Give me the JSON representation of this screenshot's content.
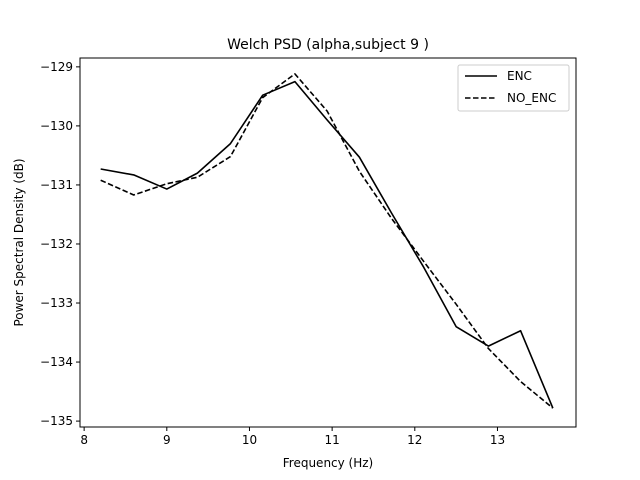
{
  "chart_data": {
    "type": "line",
    "title": "Welch PSD (alpha,subject 9 )",
    "xlabel": "Frequency (Hz)",
    "ylabel": "Power Spectral Density (dB)",
    "xlim": [
      7.95,
      13.95
    ],
    "ylim": [
      -135.1,
      -128.85
    ],
    "xticks": [
      8,
      9,
      10,
      11,
      12,
      13
    ],
    "xtick_labels": [
      "8",
      "9",
      "10",
      "11",
      "12",
      "13"
    ],
    "yticks": [
      -129,
      -130,
      -131,
      -132,
      -133,
      -134,
      -135
    ],
    "ytick_labels": [
      "−129",
      "−130",
      "−131",
      "−132",
      "−133",
      "−134",
      "−135"
    ],
    "grid": false,
    "legend_position": "top-right",
    "series": [
      {
        "name": "ENC",
        "style": "solid",
        "color": "#000000",
        "x": [
          8.2,
          8.6,
          9.0,
          9.37,
          9.77,
          10.16,
          10.55,
          10.94,
          11.33,
          11.72,
          12.11,
          12.5,
          12.89,
          13.28,
          13.67
        ],
        "y": [
          -130.73,
          -130.83,
          -131.07,
          -130.8,
          -130.3,
          -129.48,
          -129.25,
          -129.9,
          -130.53,
          -131.48,
          -132.4,
          -133.4,
          -133.73,
          -133.47,
          -134.78
        ]
      },
      {
        "name": "NO_ENC",
        "style": "dashed",
        "color": "#000000",
        "x": [
          8.2,
          8.6,
          9.0,
          9.37,
          9.77,
          10.16,
          10.55,
          10.94,
          11.33,
          11.72,
          12.11,
          12.5,
          12.89,
          13.28,
          13.67
        ],
        "y": [
          -130.92,
          -131.17,
          -130.98,
          -130.87,
          -130.52,
          -129.52,
          -129.12,
          -129.75,
          -130.77,
          -131.57,
          -132.3,
          -133.02,
          -133.77,
          -134.33,
          -134.78
        ]
      }
    ]
  }
}
